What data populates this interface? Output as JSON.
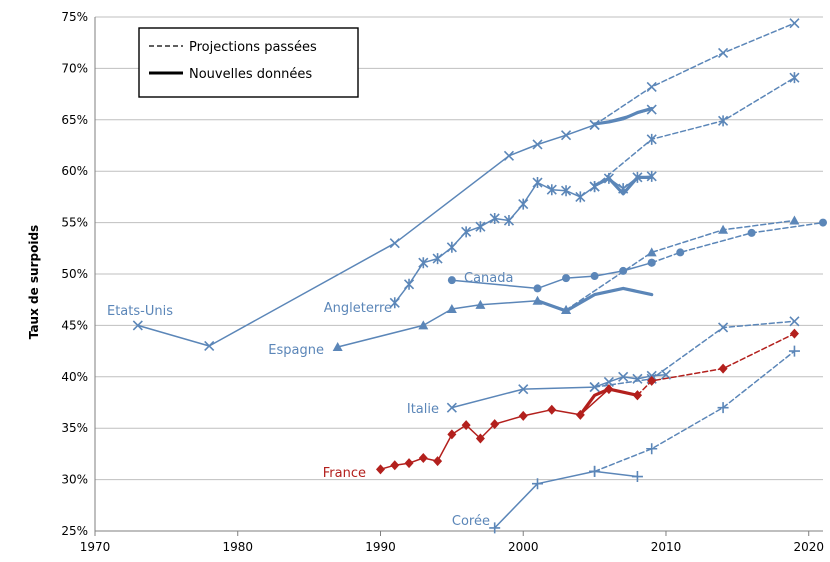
{
  "chart_data": {
    "type": "line",
    "title": "",
    "xlabel": "",
    "ylabel": "Taux de surpoids",
    "xlim": [
      1970,
      2021
    ],
    "ylim": [
      25,
      75
    ],
    "x_ticks": [
      1970,
      1980,
      1990,
      2000,
      2010,
      2020
    ],
    "x_tick_labels": [
      "1970",
      "1980",
      "1990",
      "2000",
      "2010",
      "2020"
    ],
    "y_ticks": [
      25,
      30,
      35,
      40,
      45,
      50,
      55,
      60,
      65,
      70,
      75
    ],
    "y_tick_labels": [
      "25%",
      "30%",
      "35%",
      "40%",
      "45%",
      "50%",
      "55%",
      "60%",
      "65%",
      "70%",
      "75%"
    ],
    "grid": "horizontal",
    "legend": {
      "position": "top-left",
      "entries": [
        {
          "label": "Projections passées",
          "style": "dashed"
        },
        {
          "label": "Nouvelles données",
          "style": "solid-thick"
        }
      ]
    },
    "colors": {
      "blue": "#5b86b8",
      "red": "#b3201d",
      "grid": "#bfbfbf"
    },
    "series": [
      {
        "name": "Etats-Unis",
        "color": "#5b86b8",
        "marker": "x",
        "segments": [
          {
            "style": "solid",
            "x": [
              1973,
              1978,
              1991,
              1999,
              2001,
              2003,
              2005,
              2009
            ],
            "y": [
              45,
              43,
              53,
              61.5,
              62.6,
              63.5,
              64.5,
              66
            ]
          },
          {
            "style": "dashed",
            "x": [
              2005,
              2009,
              2014,
              2019
            ],
            "y": [
              64.5,
              68.2,
              71.5,
              74.4
            ]
          },
          {
            "style": "thick",
            "x": [
              2005,
              2006,
              2007,
              2008,
              2009
            ],
            "y": [
              64.6,
              64.8,
              65.1,
              65.7,
              66.1
            ]
          }
        ]
      },
      {
        "name": "Angleterre",
        "color": "#5b86b8",
        "marker": "asterisk",
        "segments": [
          {
            "style": "solid",
            "x": [
              1991,
              1992,
              1993,
              1994,
              1995,
              1996,
              1997,
              1998,
              1999,
              2000,
              2001,
              2002,
              2003,
              2004,
              2005,
              2006,
              2007,
              2008,
              2009
            ],
            "y": [
              47.2,
              49.0,
              51.1,
              51.5,
              52.6,
              54.1,
              54.6,
              55.4,
              55.2,
              56.8,
              58.9,
              58.2,
              58.1,
              57.5,
              58.5,
              59.3,
              58.3,
              59.4,
              59.5
            ]
          },
          {
            "style": "dashed",
            "x": [
              2005,
              2009,
              2014,
              2019
            ],
            "y": [
              58.5,
              63.1,
              64.9,
              69.1
            ]
          },
          {
            "style": "thick",
            "x": [
              2005,
              2006,
              2007,
              2008,
              2009
            ],
            "y": [
              58.6,
              59.3,
              57.8,
              59.4,
              59.4
            ]
          }
        ]
      },
      {
        "name": "Canada",
        "color": "#5b86b8",
        "marker": "circle",
        "segments": [
          {
            "style": "solid",
            "x": [
              1995,
              2001,
              2003,
              2005,
              2007,
              2009
            ],
            "y": [
              49.4,
              48.6,
              49.6,
              49.8,
              50.3,
              51.1
            ]
          },
          {
            "style": "dashed",
            "x": [
              2009,
              2011,
              2016,
              2021
            ],
            "y": [
              51.1,
              52.1,
              54.0,
              55.0
            ]
          }
        ]
      },
      {
        "name": "Espagne",
        "color": "#5b86b8",
        "marker": "triangle",
        "segments": [
          {
            "style": "solid",
            "x": [
              1987,
              1993,
              1995,
              1997,
              2001,
              2003
            ],
            "y": [
              42.9,
              45,
              46.6,
              47.0,
              47.4,
              46.5
            ]
          },
          {
            "style": "dashed",
            "x": [
              2003,
              2009,
              2014,
              2019
            ],
            "y": [
              46.5,
              52.1,
              54.3,
              55.2
            ]
          },
          {
            "style": "thick",
            "x": [
              2001,
              2003,
              2005,
              2007,
              2009
            ],
            "y": [
              47.4,
              46.4,
              48.0,
              48.6,
              48.0
            ]
          }
        ]
      },
      {
        "name": "Italie",
        "color": "#5b86b8",
        "marker": "x",
        "segments": [
          {
            "style": "solid",
            "x": [
              1995,
              2000,
              2005,
              2006,
              2007,
              2008,
              2009,
              2010
            ],
            "y": [
              37,
              38.8,
              39.0,
              39.5,
              40.0,
              39.8,
              40.1,
              40.2
            ]
          },
          {
            "style": "dashed",
            "x": [
              2005,
              2009,
              2014,
              2019
            ],
            "y": [
              39.0,
              39.8,
              44.8,
              45.4
            ]
          }
        ]
      },
      {
        "name": "France",
        "color": "#b3201d",
        "marker": "diamond",
        "segments": [
          {
            "style": "solid",
            "x": [
              1990,
              1991,
              1992,
              1993,
              1994,
              1995,
              1996,
              1997,
              1998,
              2000,
              2002,
              2004,
              2006,
              2008
            ],
            "y": [
              31,
              31.4,
              31.6,
              32.1,
              31.8,
              34.4,
              35.3,
              34.0,
              35.4,
              36.2,
              36.8,
              36.3,
              38.8,
              38.2
            ]
          },
          {
            "style": "dashed",
            "x": [
              2008,
              2009,
              2014,
              2019
            ],
            "y": [
              38.2,
              39.6,
              40.8,
              44.2
            ]
          },
          {
            "style": "thick",
            "x": [
              2004,
              2005,
              2006,
              2007,
              2008
            ],
            "y": [
              36.3,
              38.2,
              38.8,
              38.5,
              38.2
            ]
          }
        ]
      },
      {
        "name": "Corée",
        "color": "#5b86b8",
        "marker": "plus",
        "segments": [
          {
            "style": "solid",
            "x": [
              1998,
              2001,
              2005,
              2008
            ],
            "y": [
              25.3,
              29.6,
              30.8,
              30.3
            ]
          },
          {
            "style": "dashed",
            "x": [
              2005,
              2009,
              2014,
              2019
            ],
            "y": [
              30.8,
              33.0,
              37.0,
              42.5
            ]
          }
        ]
      }
    ]
  }
}
